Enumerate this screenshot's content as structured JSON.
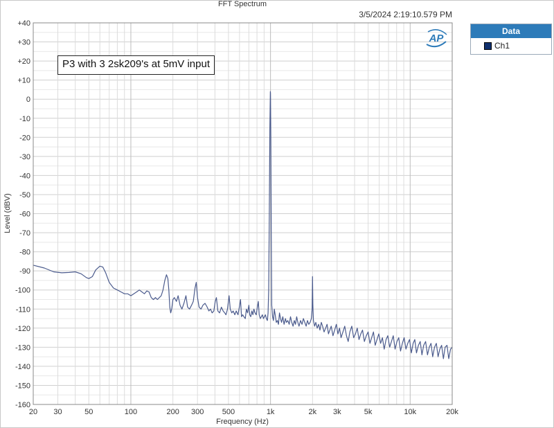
{
  "header": {
    "title": "FFT Spectrum",
    "timestamp": "3/5/2024 2:19:10.579 PM"
  },
  "legend": {
    "title": "Data",
    "items": [
      {
        "label": "Ch1",
        "color": "#10306e"
      }
    ]
  },
  "logo": {
    "text": "AP",
    "primary_color": "#2d7bb9"
  },
  "chart_data": {
    "type": "line",
    "title": "FFT Spectrum",
    "xlabel": "Frequency (Hz)",
    "ylabel": "Level (dBV)",
    "x_scale": "log",
    "xlim": [
      20,
      20000
    ],
    "ylim": [
      -160,
      40
    ],
    "grid": true,
    "legend_placement": "outside-right",
    "annotation": "P3 with 3 2sk209's at 5mV input",
    "x_ticks": [
      {
        "value": 20,
        "label": "20"
      },
      {
        "value": 30,
        "label": "30"
      },
      {
        "value": 50,
        "label": "50"
      },
      {
        "value": 100,
        "label": "100"
      },
      {
        "value": 200,
        "label": "200"
      },
      {
        "value": 300,
        "label": "300"
      },
      {
        "value": 500,
        "label": "500"
      },
      {
        "value": 1000,
        "label": "1k"
      },
      {
        "value": 2000,
        "label": "2k"
      },
      {
        "value": 3000,
        "label": "3k"
      },
      {
        "value": 5000,
        "label": "5k"
      },
      {
        "value": 10000,
        "label": "10k"
      },
      {
        "value": 20000,
        "label": "20k"
      }
    ],
    "y_ticks": [
      {
        "value": 40,
        "label": "+40"
      },
      {
        "value": 30,
        "label": "+30"
      },
      {
        "value": 20,
        "label": "+20"
      },
      {
        "value": 10,
        "label": "+10"
      },
      {
        "value": 0,
        "label": "0"
      },
      {
        "value": -10,
        "label": "-10"
      },
      {
        "value": -20,
        "label": "-20"
      },
      {
        "value": -30,
        "label": "-30"
      },
      {
        "value": -40,
        "label": "-40"
      },
      {
        "value": -50,
        "label": "-50"
      },
      {
        "value": -60,
        "label": "-60"
      },
      {
        "value": -70,
        "label": "-70"
      },
      {
        "value": -80,
        "label": "-80"
      },
      {
        "value": -90,
        "label": "-90"
      },
      {
        "value": -100,
        "label": "-100"
      },
      {
        "value": -110,
        "label": "-110"
      },
      {
        "value": -120,
        "label": "-120"
      },
      {
        "value": -130,
        "label": "-130"
      },
      {
        "value": -140,
        "label": "-140"
      },
      {
        "value": -150,
        "label": "-150"
      },
      {
        "value": -160,
        "label": "-160"
      }
    ],
    "series": [
      {
        "name": "Ch1",
        "color": "#4a5a8c",
        "points": [
          [
            20,
            -87
          ],
          [
            24,
            -88.5
          ],
          [
            28,
            -90.5
          ],
          [
            32,
            -91
          ],
          [
            36,
            -90.8
          ],
          [
            40,
            -90.5
          ],
          [
            44,
            -91.5
          ],
          [
            48,
            -93.5
          ],
          [
            50,
            -94
          ],
          [
            53,
            -93
          ],
          [
            56,
            -89.5
          ],
          [
            60,
            -87.5
          ],
          [
            63,
            -88
          ],
          [
            66,
            -91
          ],
          [
            70,
            -96
          ],
          [
            75,
            -99
          ],
          [
            80,
            -100
          ],
          [
            85,
            -101
          ],
          [
            90,
            -102
          ],
          [
            95,
            -102
          ],
          [
            100,
            -103
          ],
          [
            105,
            -102
          ],
          [
            110,
            -101
          ],
          [
            115,
            -100
          ],
          [
            120,
            -101
          ],
          [
            125,
            -102
          ],
          [
            130,
            -100.5
          ],
          [
            135,
            -101
          ],
          [
            140,
            -104
          ],
          [
            145,
            -105
          ],
          [
            150,
            -104
          ],
          [
            155,
            -105
          ],
          [
            160,
            -104
          ],
          [
            165,
            -103
          ],
          [
            170,
            -100
          ],
          [
            175,
            -95
          ],
          [
            180,
            -92
          ],
          [
            184,
            -94
          ],
          [
            187,
            -100
          ],
          [
            190,
            -109
          ],
          [
            193,
            -112
          ],
          [
            196,
            -110
          ],
          [
            200,
            -105
          ],
          [
            205,
            -104
          ],
          [
            212,
            -106
          ],
          [
            218,
            -103
          ],
          [
            225,
            -108
          ],
          [
            232,
            -110
          ],
          [
            240,
            -107
          ],
          [
            248,
            -103
          ],
          [
            255,
            -109
          ],
          [
            263,
            -110
          ],
          [
            272,
            -108
          ],
          [
            280,
            -106
          ],
          [
            288,
            -99
          ],
          [
            294,
            -96
          ],
          [
            300,
            -104
          ],
          [
            308,
            -109
          ],
          [
            318,
            -110
          ],
          [
            328,
            -108
          ],
          [
            340,
            -107
          ],
          [
            352,
            -109
          ],
          [
            362,
            -111
          ],
          [
            372,
            -110
          ],
          [
            382,
            -112
          ],
          [
            393,
            -111
          ],
          [
            402,
            -106
          ],
          [
            410,
            -104
          ],
          [
            420,
            -111
          ],
          [
            432,
            -112
          ],
          [
            445,
            -109
          ],
          [
            458,
            -111
          ],
          [
            470,
            -112
          ],
          [
            480,
            -113
          ],
          [
            492,
            -110
          ],
          [
            505,
            -103
          ],
          [
            515,
            -110
          ],
          [
            528,
            -112
          ],
          [
            540,
            -111
          ],
          [
            555,
            -113
          ],
          [
            568,
            -111
          ],
          [
            585,
            -113
          ],
          [
            598,
            -109
          ],
          [
            610,
            -105
          ],
          [
            620,
            -114
          ],
          [
            632,
            -113
          ],
          [
            645,
            -114
          ],
          [
            660,
            -115
          ],
          [
            672,
            -110
          ],
          [
            685,
            -112
          ],
          [
            700,
            -108
          ],
          [
            710,
            -113
          ],
          [
            722,
            -114
          ],
          [
            735,
            -111
          ],
          [
            748,
            -113
          ],
          [
            760,
            -110
          ],
          [
            775,
            -112
          ],
          [
            790,
            -113
          ],
          [
            805,
            -109
          ],
          [
            818,
            -106
          ],
          [
            830,
            -113
          ],
          [
            845,
            -115
          ],
          [
            860,
            -114
          ],
          [
            875,
            -113
          ],
          [
            890,
            -115
          ],
          [
            905,
            -114
          ],
          [
            920,
            -113
          ],
          [
            935,
            -115
          ],
          [
            950,
            -116
          ],
          [
            960,
            -112
          ],
          [
            970,
            -100
          ],
          [
            980,
            -60
          ],
          [
            990,
            -15
          ],
          [
            997,
            4
          ],
          [
            1000,
            3
          ],
          [
            1005,
            -20
          ],
          [
            1012,
            -70
          ],
          [
            1020,
            -108
          ],
          [
            1035,
            -114
          ],
          [
            1050,
            -116
          ],
          [
            1065,
            -110
          ],
          [
            1080,
            -113
          ],
          [
            1100,
            -117
          ],
          [
            1120,
            -116
          ],
          [
            1140,
            -118
          ],
          [
            1160,
            -112
          ],
          [
            1180,
            -115
          ],
          [
            1200,
            -117
          ],
          [
            1225,
            -114
          ],
          [
            1250,
            -118
          ],
          [
            1280,
            -115
          ],
          [
            1300,
            -117
          ],
          [
            1330,
            -116
          ],
          [
            1360,
            -118
          ],
          [
            1390,
            -114
          ],
          [
            1420,
            -117
          ],
          [
            1450,
            -119
          ],
          [
            1480,
            -116
          ],
          [
            1510,
            -118
          ],
          [
            1540,
            -114
          ],
          [
            1570,
            -117
          ],
          [
            1600,
            -119
          ],
          [
            1640,
            -116
          ],
          [
            1680,
            -118
          ],
          [
            1720,
            -115
          ],
          [
            1760,
            -117
          ],
          [
            1800,
            -119
          ],
          [
            1840,
            -116
          ],
          [
            1880,
            -118
          ],
          [
            1920,
            -117
          ],
          [
            1960,
            -115
          ],
          [
            1985,
            -110
          ],
          [
            2000,
            -93
          ],
          [
            2010,
            -108
          ],
          [
            2030,
            -116
          ],
          [
            2070,
            -119
          ],
          [
            2110,
            -117
          ],
          [
            2160,
            -120
          ],
          [
            2210,
            -118
          ],
          [
            2260,
            -121
          ],
          [
            2310,
            -117
          ],
          [
            2360,
            -119
          ],
          [
            2420,
            -122
          ],
          [
            2480,
            -120
          ],
          [
            2540,
            -118
          ],
          [
            2600,
            -123
          ],
          [
            2660,
            -121
          ],
          [
            2720,
            -119
          ],
          [
            2800,
            -124
          ],
          [
            2880,
            -121
          ],
          [
            2960,
            -118
          ],
          [
            3040,
            -123
          ],
          [
            3120,
            -120
          ],
          [
            3200,
            -125
          ],
          [
            3300,
            -122
          ],
          [
            3400,
            -119
          ],
          [
            3500,
            -124
          ],
          [
            3600,
            -127
          ],
          [
            3700,
            -122
          ],
          [
            3820,
            -119
          ],
          [
            3940,
            -125
          ],
          [
            4060,
            -123
          ],
          [
            4180,
            -120
          ],
          [
            4300,
            -126
          ],
          [
            4430,
            -123
          ],
          [
            4560,
            -121
          ],
          [
            4700,
            -127
          ],
          [
            4850,
            -124
          ],
          [
            5000,
            -122
          ],
          [
            5150,
            -128
          ],
          [
            5300,
            -125
          ],
          [
            5460,
            -122
          ],
          [
            5620,
            -129
          ],
          [
            5790,
            -126
          ],
          [
            5960,
            -123
          ],
          [
            6140,
            -128
          ],
          [
            6330,
            -125
          ],
          [
            6520,
            -131
          ],
          [
            6720,
            -126
          ],
          [
            6920,
            -124
          ],
          [
            7130,
            -130
          ],
          [
            7350,
            -127
          ],
          [
            7570,
            -124
          ],
          [
            7800,
            -131
          ],
          [
            8040,
            -127
          ],
          [
            8280,
            -125
          ],
          [
            8530,
            -132
          ],
          [
            8790,
            -128
          ],
          [
            9060,
            -125
          ],
          [
            9330,
            -131
          ],
          [
            9610,
            -128
          ],
          [
            9900,
            -126
          ],
          [
            10200,
            -133
          ],
          [
            10500,
            -128
          ],
          [
            10800,
            -126
          ],
          [
            11100,
            -133
          ],
          [
            11450,
            -129
          ],
          [
            11800,
            -127
          ],
          [
            12150,
            -134
          ],
          [
            12500,
            -129
          ],
          [
            12900,
            -127
          ],
          [
            13300,
            -134
          ],
          [
            13700,
            -130
          ],
          [
            14100,
            -128
          ],
          [
            14500,
            -135
          ],
          [
            14950,
            -130
          ],
          [
            15400,
            -128
          ],
          [
            15850,
            -135
          ],
          [
            16300,
            -131
          ],
          [
            16800,
            -129
          ],
          [
            17300,
            -136
          ],
          [
            17800,
            -130
          ],
          [
            18350,
            -129
          ],
          [
            18900,
            -136
          ],
          [
            19450,
            -131
          ],
          [
            20000,
            -130
          ]
        ]
      }
    ]
  }
}
